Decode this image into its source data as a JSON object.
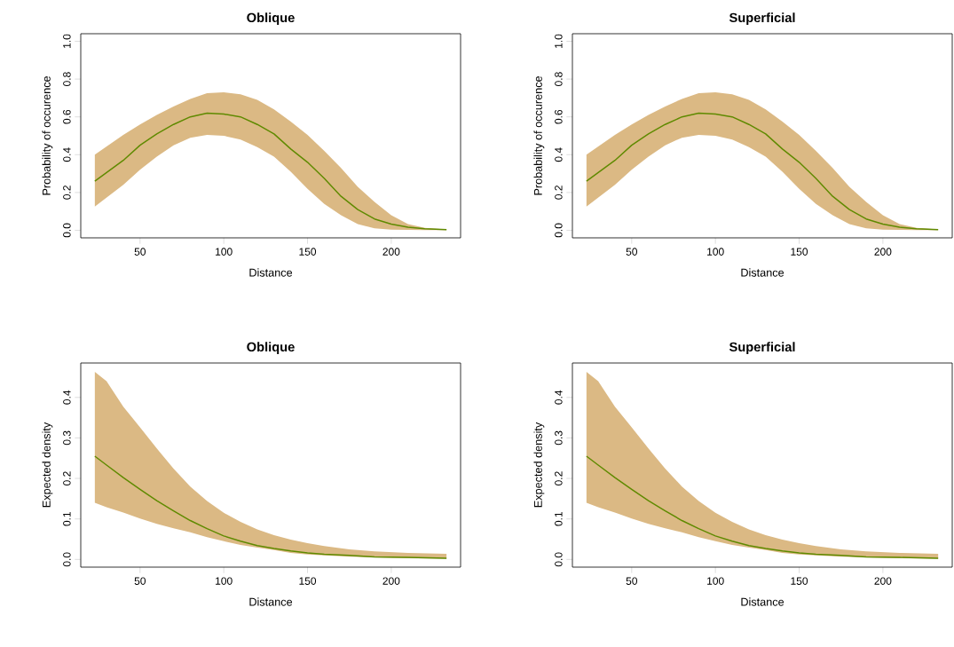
{
  "chart_data": [
    {
      "type": "line",
      "title": "Oblique",
      "xlabel": "Distance",
      "ylabel": "Probability of occurence",
      "xlim": [
        14.6,
        241.4
      ],
      "ylim": [
        -0.04,
        1.04
      ],
      "xticks": [
        50,
        100,
        150,
        200
      ],
      "yticks": [
        {
          "value": 0,
          "label": "0.0"
        },
        {
          "value": 0.2,
          "label": "0.2"
        },
        {
          "value": 0.4,
          "label": "0.4"
        },
        {
          "value": 0.6,
          "label": "0.6"
        },
        {
          "value": 0.8,
          "label": "0.8"
        },
        {
          "value": 1,
          "label": "1.0"
        }
      ],
      "grid": false,
      "x": [
        23,
        40,
        50,
        60,
        70,
        80,
        90,
        100,
        110,
        120,
        130,
        140,
        150,
        160,
        170,
        180,
        190,
        200,
        210,
        220,
        233
      ],
      "series": [
        {
          "color": "#5f8a00",
          "values": [
            0.26,
            0.37,
            0.45,
            0.51,
            0.56,
            0.6,
            0.62,
            0.615,
            0.6,
            0.56,
            0.51,
            0.43,
            0.36,
            0.275,
            0.18,
            0.11,
            0.06,
            0.033,
            0.016,
            0.008,
            0.003
          ],
          "upper": [
            0.4,
            0.505,
            0.56,
            0.61,
            0.655,
            0.695,
            0.725,
            0.73,
            0.72,
            0.69,
            0.64,
            0.575,
            0.505,
            0.42,
            0.33,
            0.23,
            0.15,
            0.08,
            0.033,
            0.013,
            0.005
          ],
          "lower": [
            0.125,
            0.24,
            0.32,
            0.39,
            0.45,
            0.49,
            0.505,
            0.5,
            0.48,
            0.44,
            0.39,
            0.31,
            0.22,
            0.14,
            0.08,
            0.033,
            0.01,
            0.004,
            0.002,
            0.001,
            0.001
          ]
        }
      ]
    },
    {
      "type": "line",
      "title": "Superficial",
      "xlabel": "Distance",
      "ylabel": "Probability of occurence",
      "xlim": [
        14.6,
        241.4
      ],
      "ylim": [
        -0.04,
        1.04
      ],
      "xticks": [
        50,
        100,
        150,
        200
      ],
      "yticks": [
        {
          "value": 0,
          "label": "0.0"
        },
        {
          "value": 0.2,
          "label": "0.2"
        },
        {
          "value": 0.4,
          "label": "0.4"
        },
        {
          "value": 0.6,
          "label": "0.6"
        },
        {
          "value": 0.8,
          "label": "0.8"
        },
        {
          "value": 1,
          "label": "1.0"
        }
      ],
      "grid": false,
      "x": [
        23,
        40,
        50,
        60,
        70,
        80,
        90,
        100,
        110,
        120,
        130,
        140,
        150,
        160,
        170,
        180,
        190,
        200,
        210,
        220,
        233
      ],
      "series": [
        {
          "color": "#5f8a00",
          "values": [
            0.26,
            0.37,
            0.45,
            0.51,
            0.56,
            0.6,
            0.62,
            0.615,
            0.6,
            0.56,
            0.51,
            0.43,
            0.36,
            0.275,
            0.18,
            0.11,
            0.06,
            0.033,
            0.016,
            0.008,
            0.003
          ],
          "upper": [
            0.4,
            0.505,
            0.56,
            0.61,
            0.655,
            0.695,
            0.725,
            0.73,
            0.72,
            0.69,
            0.64,
            0.575,
            0.505,
            0.42,
            0.33,
            0.23,
            0.15,
            0.08,
            0.033,
            0.013,
            0.005
          ],
          "lower": [
            0.125,
            0.24,
            0.32,
            0.39,
            0.45,
            0.49,
            0.505,
            0.5,
            0.48,
            0.44,
            0.39,
            0.31,
            0.22,
            0.14,
            0.08,
            0.033,
            0.01,
            0.004,
            0.002,
            0.001,
            0.001
          ]
        }
      ]
    },
    {
      "type": "line",
      "title": "Oblique",
      "xlabel": "Distance",
      "ylabel": "Expected density",
      "xlim": [
        14.6,
        241.4
      ],
      "ylim": [
        -0.019,
        0.485
      ],
      "xticks": [
        50,
        100,
        150,
        200
      ],
      "yticks": [
        {
          "value": 0,
          "label": "0.0"
        },
        {
          "value": 0.1,
          "label": "0.1"
        },
        {
          "value": 0.2,
          "label": "0.2"
        },
        {
          "value": 0.3,
          "label": "0.3"
        },
        {
          "value": 0.4,
          "label": "0.4"
        }
      ],
      "grid": false,
      "x": [
        23,
        30,
        40,
        50,
        60,
        70,
        80,
        90,
        100,
        110,
        120,
        130,
        140,
        150,
        160,
        175,
        190,
        210,
        233
      ],
      "series": [
        {
          "color": "#5f8a00",
          "values": [
            0.255,
            0.233,
            0.202,
            0.173,
            0.145,
            0.12,
            0.096,
            0.076,
            0.058,
            0.045,
            0.034,
            0.027,
            0.021,
            0.016,
            0.013,
            0.01,
            0.006,
            0.005,
            0.003
          ],
          "upper": [
            0.463,
            0.44,
            0.377,
            0.326,
            0.274,
            0.224,
            0.18,
            0.144,
            0.115,
            0.093,
            0.074,
            0.06,
            0.049,
            0.04,
            0.033,
            0.025,
            0.02,
            0.016,
            0.014
          ],
          "lower": [
            0.14,
            0.129,
            0.116,
            0.101,
            0.088,
            0.077,
            0.067,
            0.055,
            0.045,
            0.036,
            0.029,
            0.023,
            0.016,
            0.012,
            0.01,
            0.007,
            0.005,
            0.003,
            0.002
          ]
        }
      ]
    },
    {
      "type": "line",
      "title": "Superficial",
      "xlabel": "Distance",
      "ylabel": "Expected density",
      "xlim": [
        14.6,
        241.4
      ],
      "ylim": [
        -0.019,
        0.485
      ],
      "xticks": [
        50,
        100,
        150,
        200
      ],
      "yticks": [
        {
          "value": 0,
          "label": "0.0"
        },
        {
          "value": 0.1,
          "label": "0.1"
        },
        {
          "value": 0.2,
          "label": "0.2"
        },
        {
          "value": 0.3,
          "label": "0.3"
        },
        {
          "value": 0.4,
          "label": "0.4"
        }
      ],
      "grid": false,
      "x": [
        23,
        30,
        40,
        50,
        60,
        70,
        80,
        90,
        100,
        110,
        120,
        130,
        140,
        150,
        160,
        175,
        190,
        210,
        233
      ],
      "series": [
        {
          "color": "#5f8a00",
          "values": [
            0.255,
            0.233,
            0.202,
            0.173,
            0.145,
            0.12,
            0.096,
            0.076,
            0.058,
            0.045,
            0.034,
            0.027,
            0.021,
            0.016,
            0.013,
            0.01,
            0.006,
            0.005,
            0.003
          ],
          "upper": [
            0.463,
            0.44,
            0.377,
            0.326,
            0.274,
            0.224,
            0.18,
            0.144,
            0.115,
            0.093,
            0.074,
            0.06,
            0.049,
            0.04,
            0.033,
            0.025,
            0.02,
            0.016,
            0.014
          ],
          "lower": [
            0.14,
            0.129,
            0.116,
            0.101,
            0.088,
            0.077,
            0.067,
            0.055,
            0.045,
            0.036,
            0.029,
            0.023,
            0.016,
            0.012,
            0.01,
            0.007,
            0.005,
            0.003,
            0.002
          ]
        }
      ]
    }
  ]
}
